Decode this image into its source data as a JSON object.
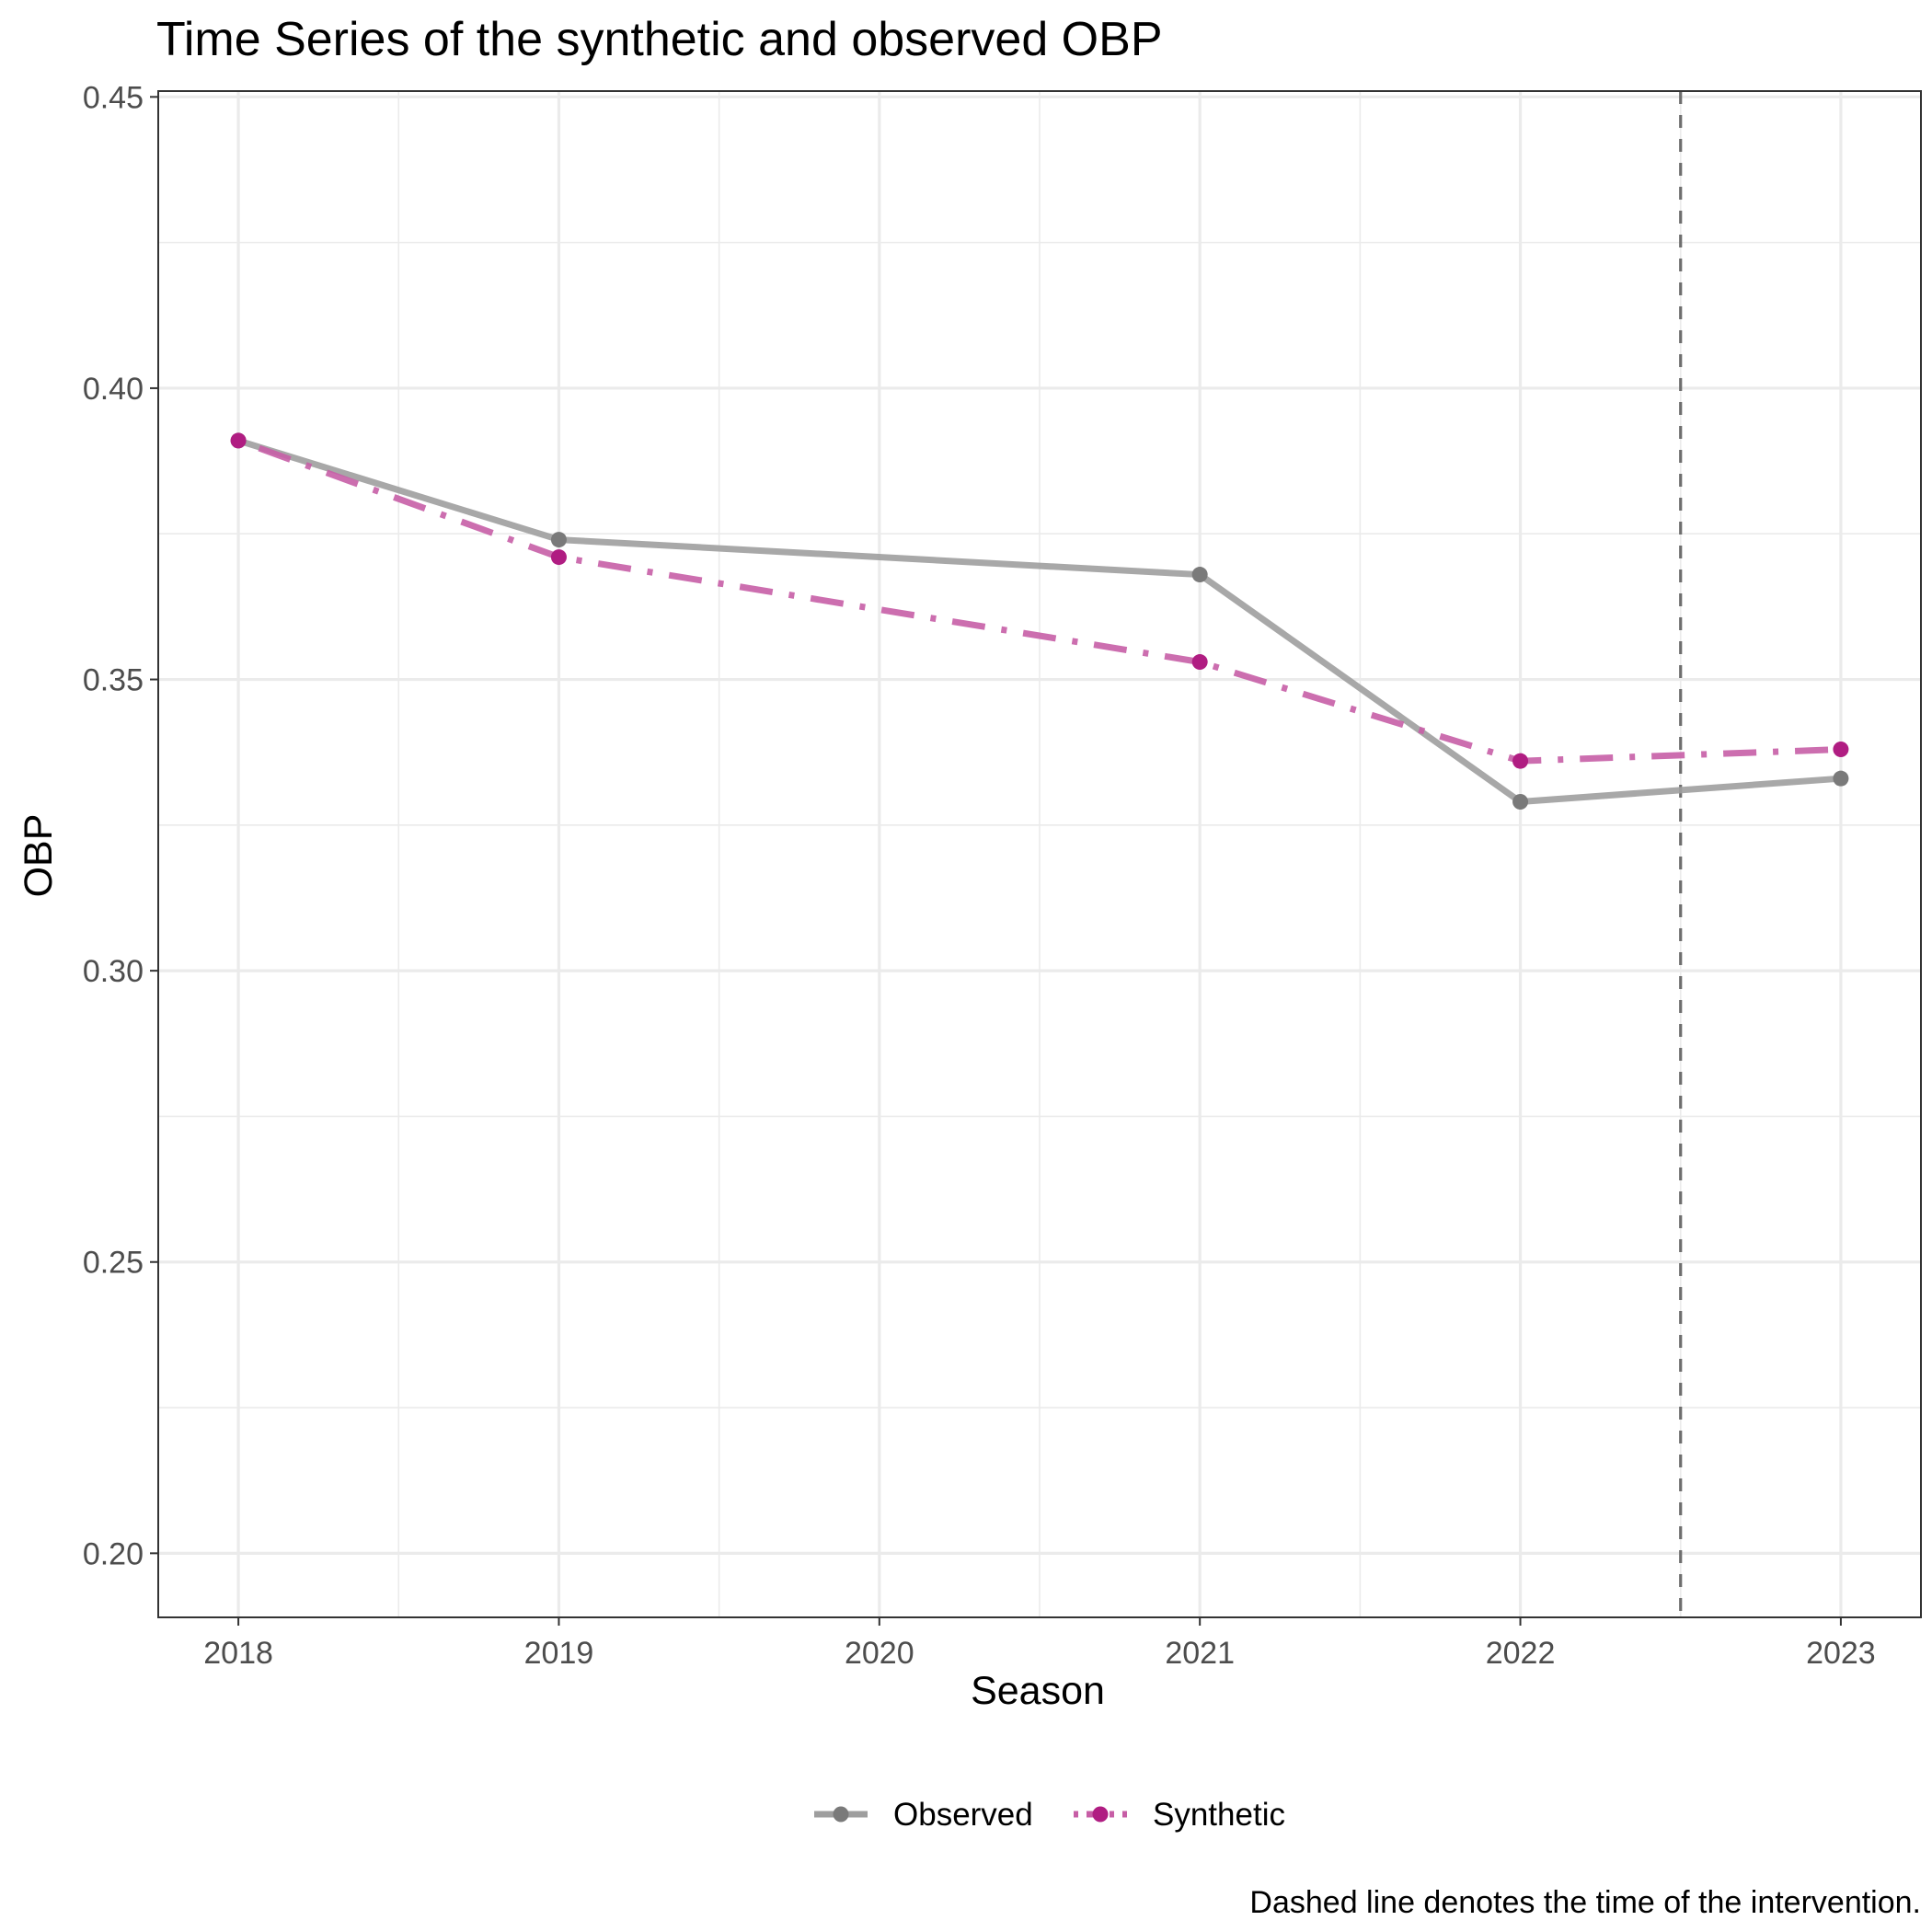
{
  "chart_data": {
    "type": "line",
    "title": "Time Series of the synthetic and observed OBP",
    "xlabel": "Season",
    "ylabel": "OBP",
    "caption": "Dashed line denotes the time of the intervention.",
    "x": [
      2018,
      2019,
      2020,
      2021,
      2022,
      2023
    ],
    "x_tick_labels": [
      "2018",
      "2019",
      "2020",
      "2021",
      "2022",
      "2023"
    ],
    "y_ticks": [
      0.2,
      0.25,
      0.3,
      0.35,
      0.4,
      0.45
    ],
    "y_tick_labels": [
      "0.20",
      "0.25",
      "0.30",
      "0.35",
      "0.40",
      "0.45"
    ],
    "xlim": [
      2017.75,
      2023.25
    ],
    "ylim": [
      0.189,
      0.451
    ],
    "grid": true,
    "legend_position": "bottom",
    "intervention_x": 2022.5,
    "series": [
      {
        "name": "Observed",
        "color": "#9e9e9e",
        "point_color": "#7a7a7a",
        "line_style": "solid",
        "points": [
          {
            "x": 2018,
            "y": 0.391
          },
          {
            "x": 2019,
            "y": 0.374
          },
          {
            "x": 2021,
            "y": 0.368
          },
          {
            "x": 2022,
            "y": 0.329
          },
          {
            "x": 2023,
            "y": 0.333
          }
        ]
      },
      {
        "name": "Synthetic",
        "color": "#c75ea6",
        "point_color": "#b01d82",
        "line_style": "dotdash",
        "points": [
          {
            "x": 2018,
            "y": 0.391
          },
          {
            "x": 2019,
            "y": 0.371
          },
          {
            "x": 2021,
            "y": 0.353
          },
          {
            "x": 2022,
            "y": 0.336
          },
          {
            "x": 2023,
            "y": 0.338
          }
        ]
      }
    ]
  }
}
